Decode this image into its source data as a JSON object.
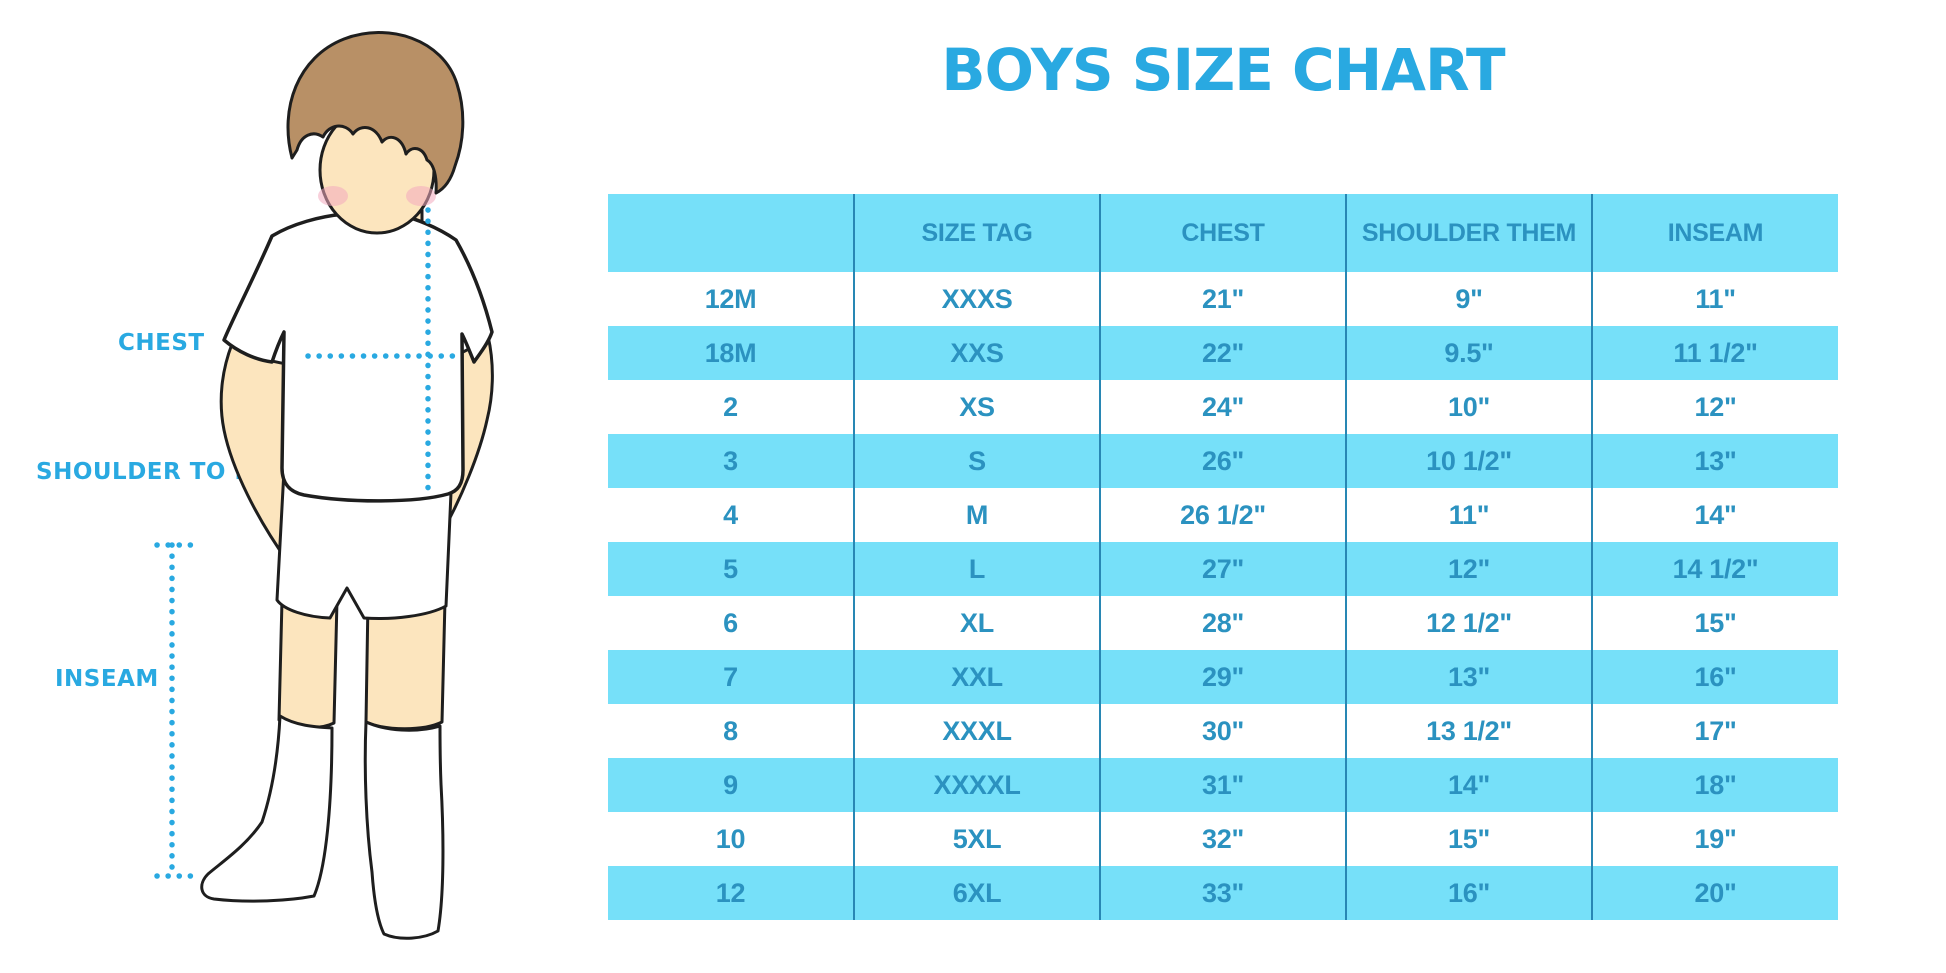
{
  "title": "BOYS SIZE CHART",
  "colors": {
    "accent": "#29A9E1",
    "table_text": "#2B92C0",
    "stripe": "#76E0F9",
    "divider": "#2887B4",
    "skin": "#FCE5BE",
    "hair": "#B89066",
    "blush": "#F2A9BE",
    "outline": "#1E1E1E"
  },
  "figure_labels": {
    "chest": "CHEST",
    "shoulder_to_hem": "SHOULDER TO HEM",
    "inseam": "INSEAM"
  },
  "table": {
    "columns": [
      "",
      "SIZE TAG",
      "CHEST",
      "SHOULDER THEM",
      "INSEAM"
    ],
    "rows": [
      [
        "12M",
        "XXXS",
        "21\"",
        "9\"",
        "11\""
      ],
      [
        "18M",
        "XXS",
        "22\"",
        "9.5\"",
        "11 1/2\""
      ],
      [
        "2",
        "XS",
        "24\"",
        "10\"",
        "12\""
      ],
      [
        "3",
        "S",
        "26\"",
        "10 1/2\"",
        "13\""
      ],
      [
        "4",
        "M",
        "26 1/2\"",
        "11\"",
        "14\""
      ],
      [
        "5",
        "L",
        "27\"",
        "12\"",
        "14 1/2\""
      ],
      [
        "6",
        "XL",
        "28\"",
        "12 1/2\"",
        "15\""
      ],
      [
        "7",
        "XXL",
        "29\"",
        "13\"",
        "16\""
      ],
      [
        "8",
        "XXXL",
        "30\"",
        "13 1/2\"",
        "17\""
      ],
      [
        "9",
        "XXXXL",
        "31\"",
        "14\"",
        "18\""
      ],
      [
        "10",
        "5XL",
        "32\"",
        "15\"",
        "19\""
      ],
      [
        "12",
        "6XL",
        "33\"",
        "16\"",
        "20\""
      ]
    ]
  }
}
